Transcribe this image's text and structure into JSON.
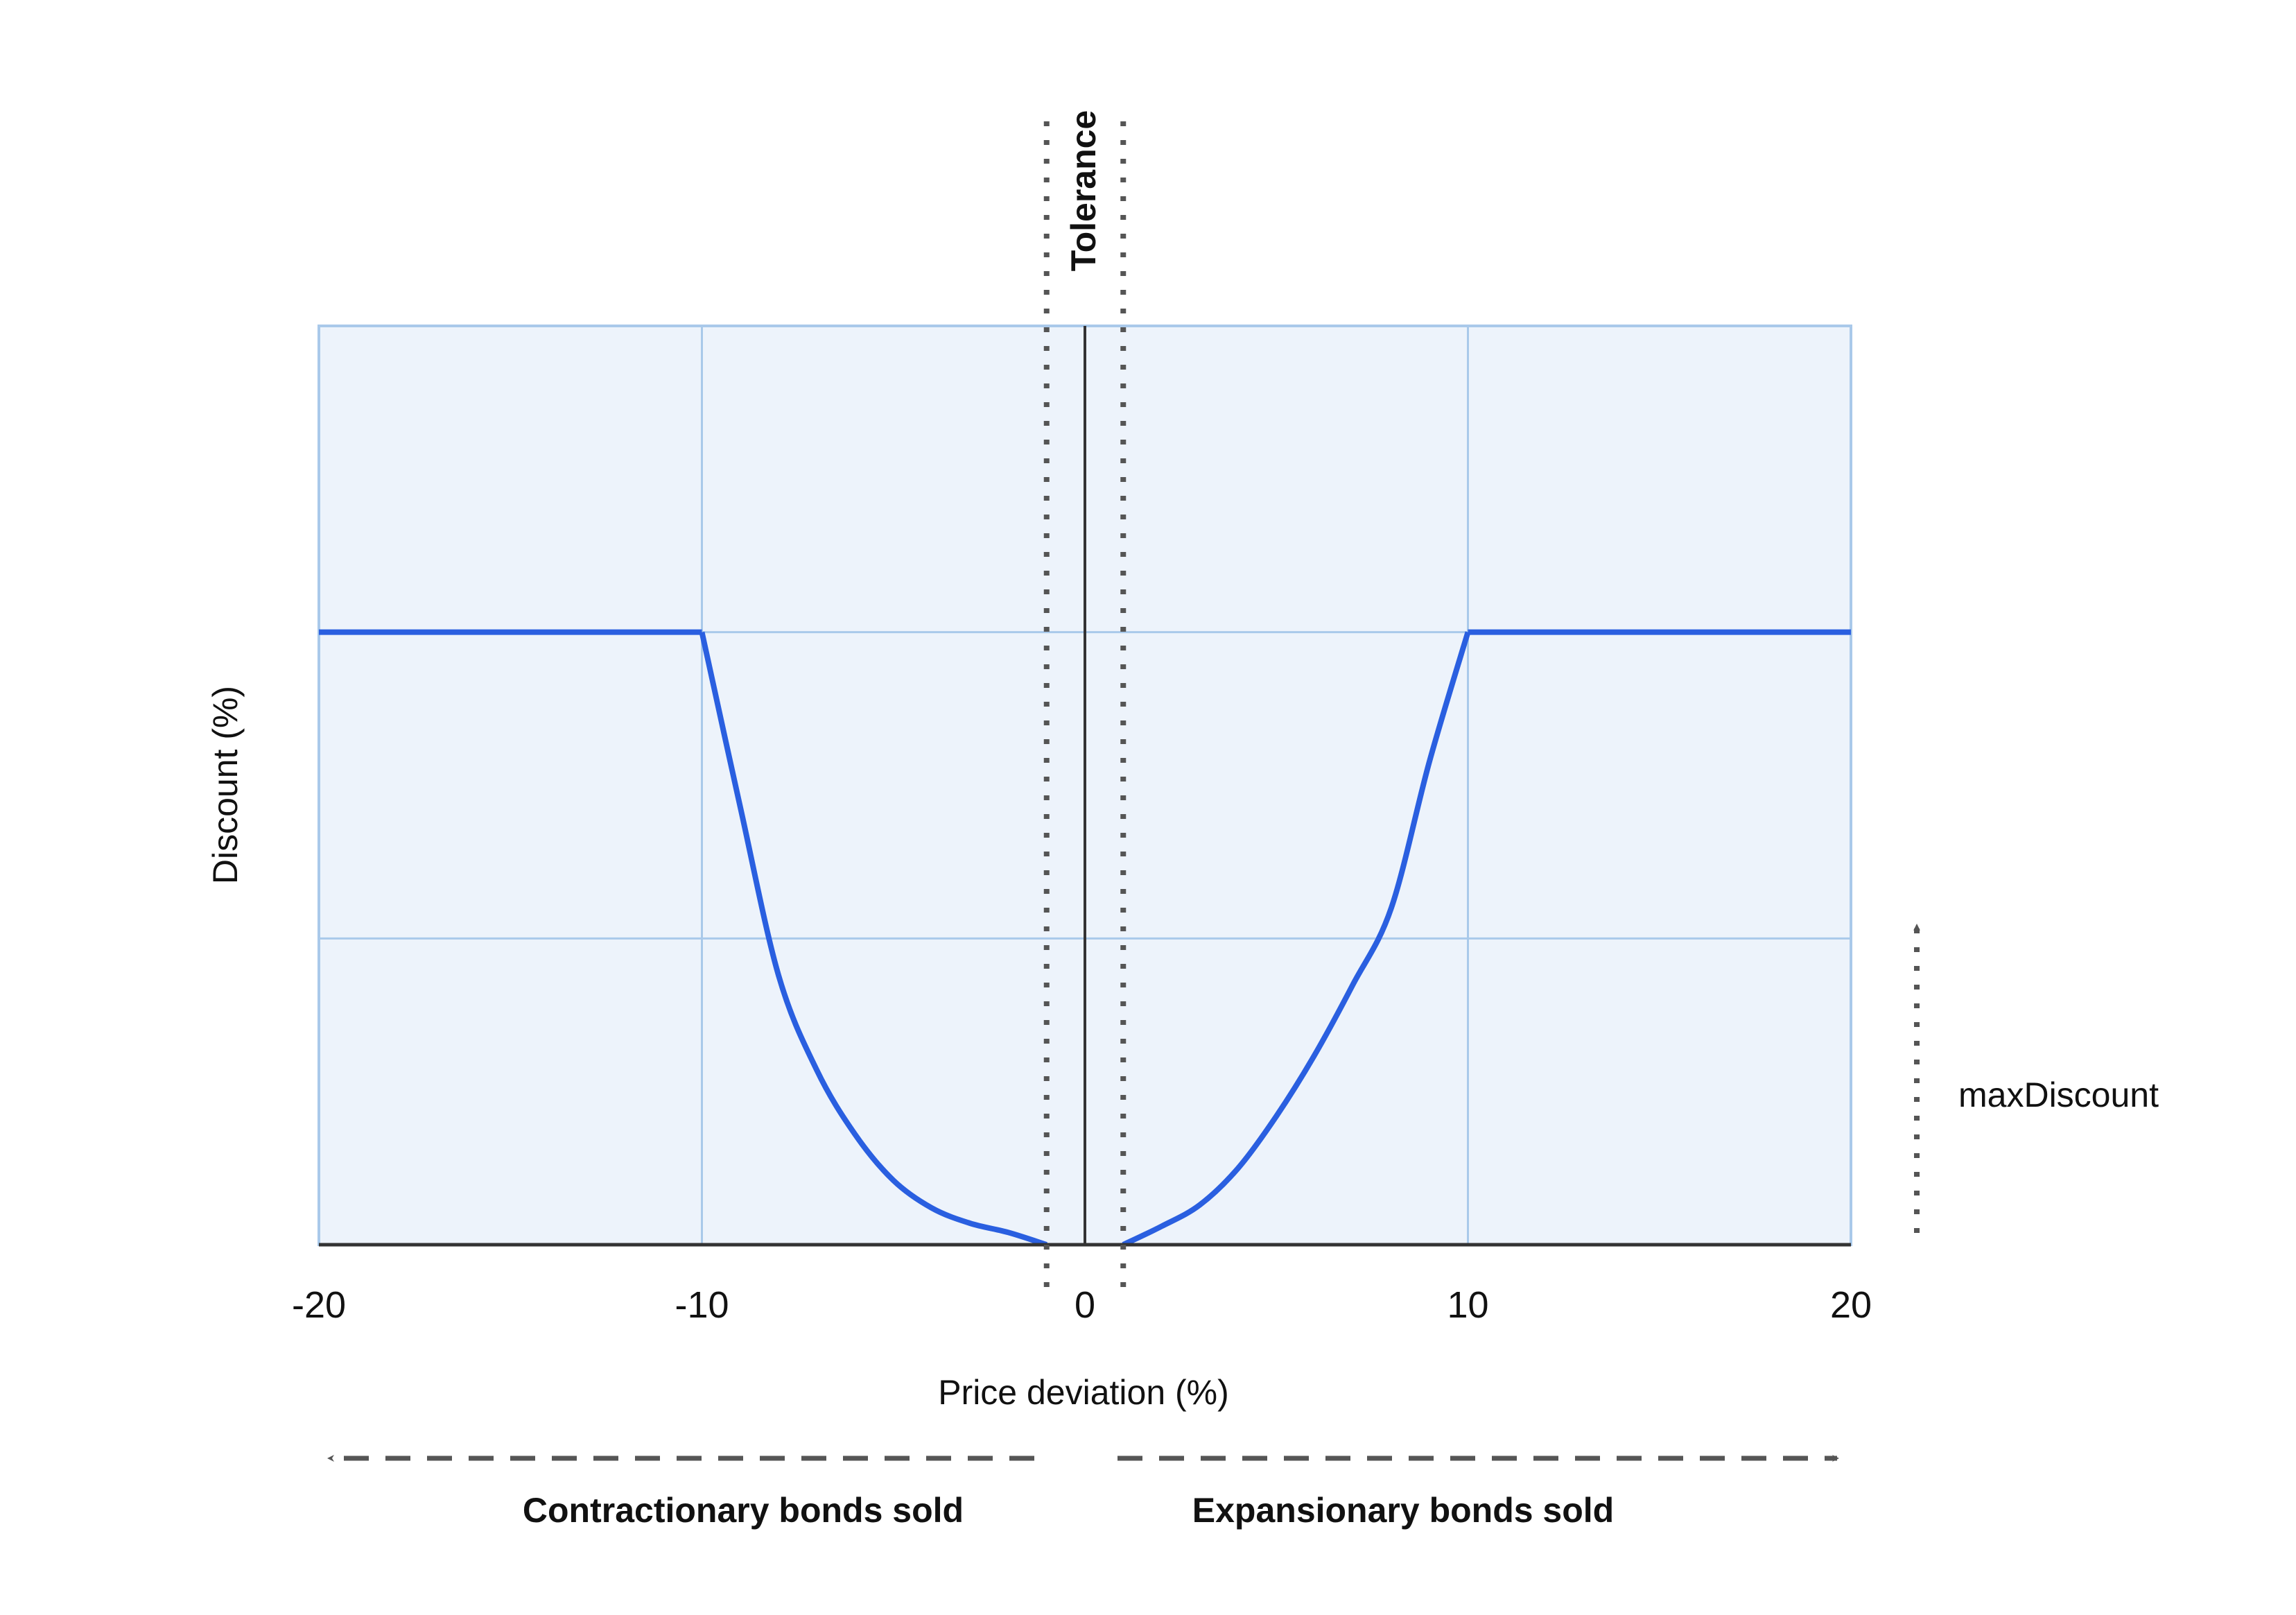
{
  "chart_data": {
    "type": "line",
    "title": "",
    "xlabel": "Price deviation (%)",
    "ylabel": "Discount (%)",
    "xlim": [
      -20,
      20
    ],
    "ylim": [
      0,
      3
    ],
    "x_ticks": [
      -20,
      -10,
      0,
      10,
      20
    ],
    "x_tick_labels": [
      "-20",
      "-10",
      "0",
      "10",
      "20"
    ],
    "y_gridlines": [
      1,
      2,
      3
    ],
    "grid": true,
    "series": [
      {
        "name": "",
        "color": "#2a5fe0",
        "segments": [
          {
            "x": [
              -20,
              -10
            ],
            "y": [
              2,
              2
            ]
          },
          {
            "x": [
              -10,
              -9,
              -8,
              -7,
              -6,
              -5,
              -4,
              -3,
              -2,
              -1
            ],
            "y": [
              2,
              1.43,
              0.88,
              0.57,
              0.36,
              0.21,
              0.12,
              0.07,
              0.04,
              0.0
            ]
          },
          {
            "x": [
              1,
              2,
              3,
              4,
              5,
              6,
              7,
              8,
              9,
              10
            ],
            "y": [
              0.0,
              0.06,
              0.13,
              0.25,
              0.42,
              0.62,
              0.85,
              1.1,
              1.58,
              2
            ]
          },
          {
            "x": [
              10,
              20
            ],
            "y": [
              2,
              2
            ]
          }
        ]
      }
    ],
    "tolerance": {
      "label": "Tolerance",
      "x": [
        -1,
        1
      ]
    },
    "annotations": {
      "contractionary": "Contractionary bonds sold",
      "expansionary": "Expansionary bonds sold",
      "max_discount": "maxDiscount"
    },
    "colors": {
      "plot_background": "#edf3fb",
      "grid": "#a9c9ea",
      "line": "#2a5fe0",
      "axis": "#333333",
      "annotation": "#555555"
    }
  }
}
